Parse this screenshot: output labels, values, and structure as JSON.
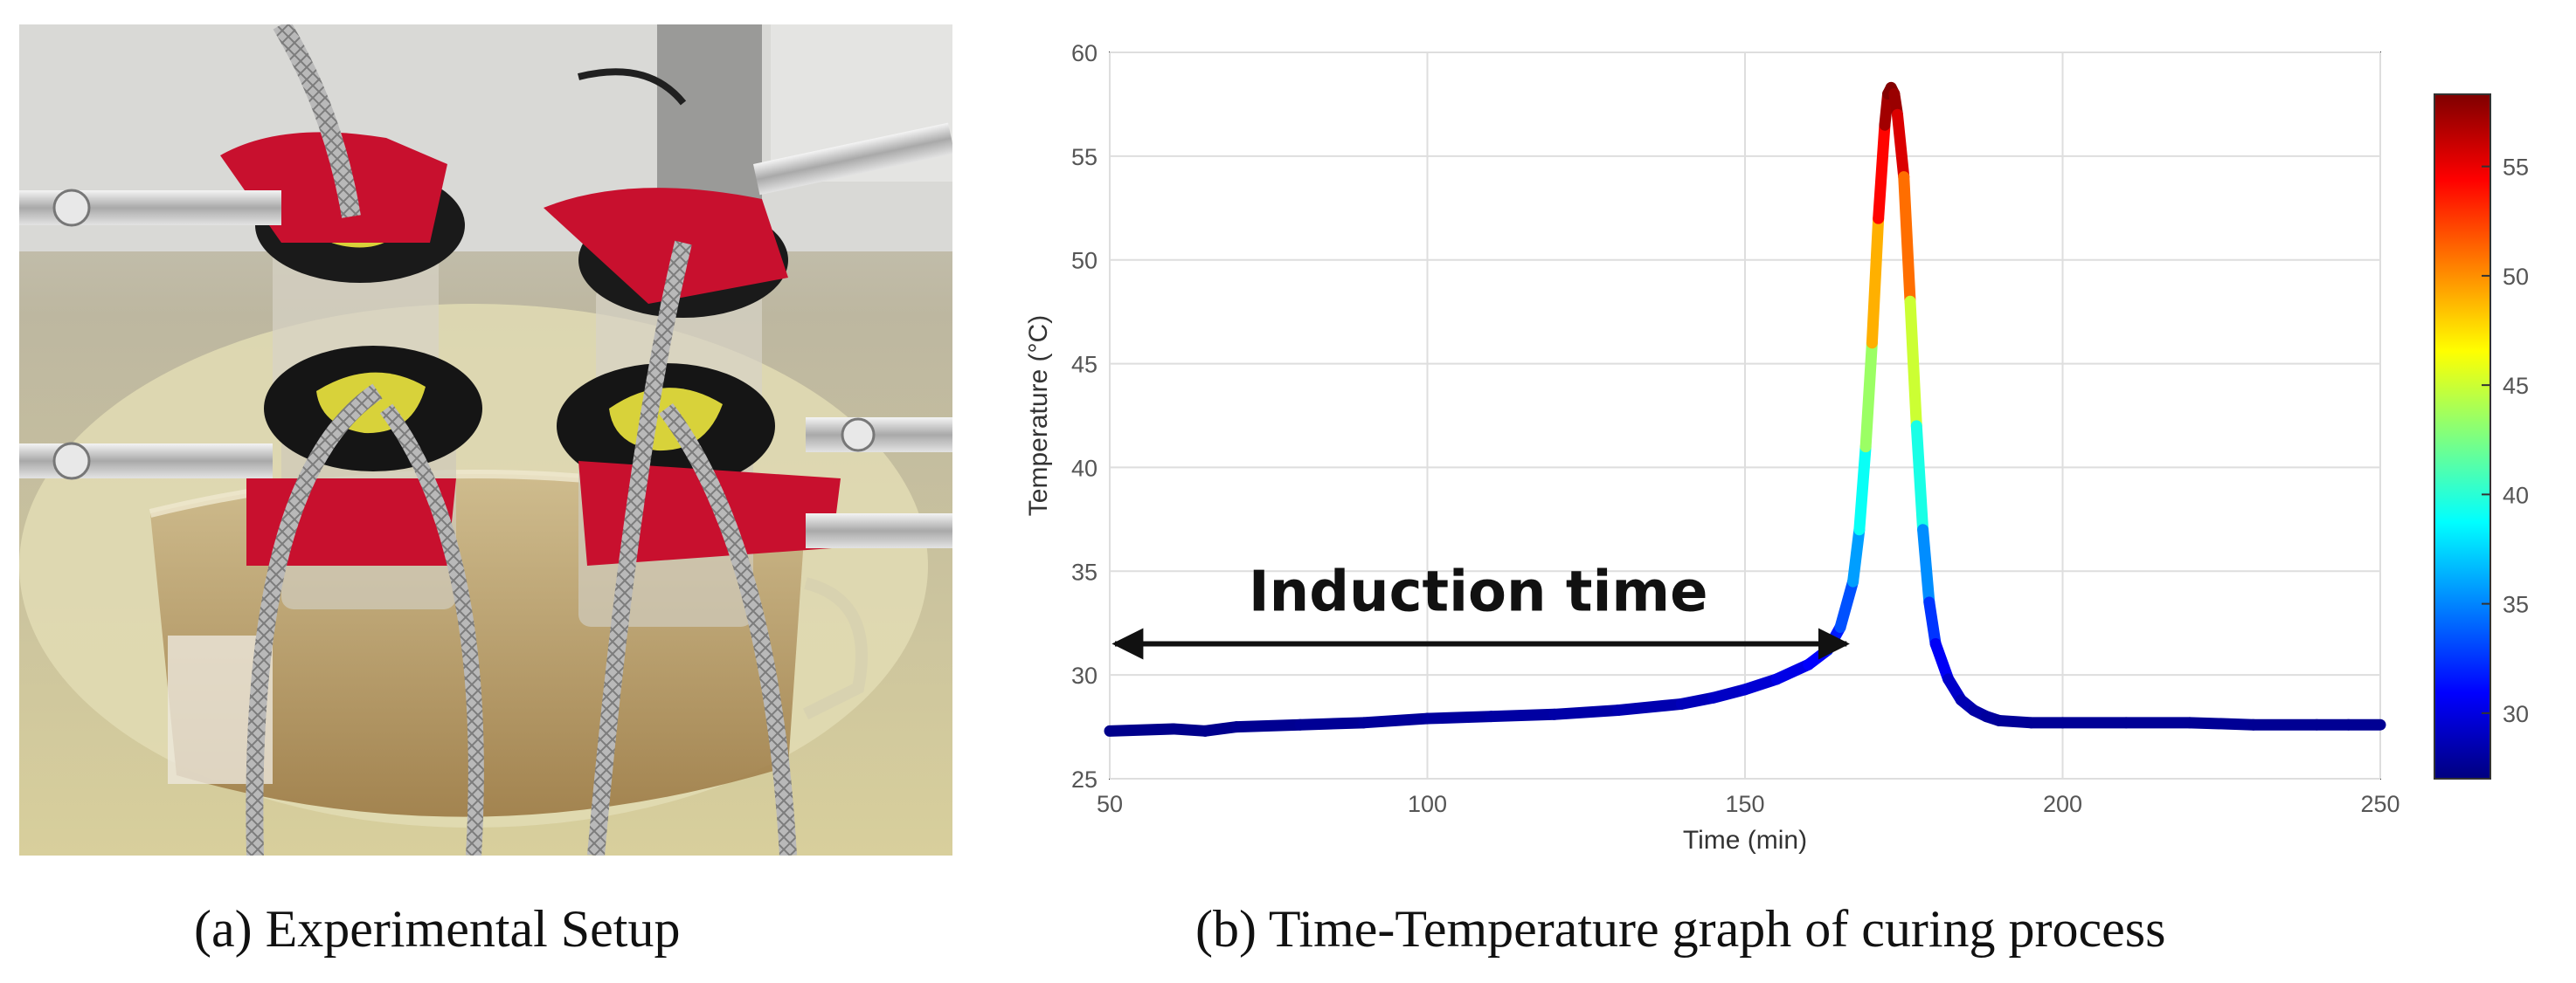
{
  "captions": {
    "a": "(a) Experimental Setup",
    "b": "(b) Time-Temperature graph of curing process"
  },
  "photo": {
    "description_icon": "lab-setup-photo"
  },
  "chart_data": {
    "type": "line",
    "title": "",
    "xlabel": "Time (min)",
    "ylabel": "Temperature (°C)",
    "xlim": [
      50,
      250
    ],
    "ylim": [
      25,
      60
    ],
    "xticks": [
      50,
      100,
      150,
      200,
      250
    ],
    "yticks": [
      25,
      30,
      35,
      40,
      45,
      50,
      55,
      60
    ],
    "grid": true,
    "series": [
      {
        "x": [
          50,
          60,
          65,
          70,
          80,
          90,
          100,
          110,
          120,
          130,
          140,
          145,
          150,
          155,
          160,
          163,
          165,
          167,
          168,
          169,
          170,
          171,
          172,
          172.5,
          173,
          173.5,
          174,
          175,
          176,
          177,
          178,
          179,
          180,
          182,
          184,
          186,
          188,
          190,
          195,
          200,
          210,
          220,
          230,
          240,
          245,
          250
        ],
        "y": [
          27.3,
          27.4,
          27.3,
          27.5,
          27.6,
          27.7,
          27.9,
          28.0,
          28.1,
          28.3,
          28.6,
          28.9,
          29.3,
          29.8,
          30.5,
          31.2,
          32.3,
          34.5,
          37.0,
          41.0,
          46.0,
          52.0,
          56.5,
          58.0,
          58.3,
          58.0,
          57.0,
          54.0,
          48.0,
          42.0,
          37.0,
          33.5,
          31.5,
          29.8,
          28.8,
          28.3,
          28.0,
          27.8,
          27.7,
          27.7,
          27.7,
          27.7,
          27.6,
          27.6,
          27.6,
          27.6
        ]
      }
    ],
    "colormap": "jet",
    "colorbar": {
      "range": [
        27,
        58.3
      ],
      "ticks": [
        30,
        35,
        40,
        45,
        50,
        55
      ]
    },
    "annotation": {
      "text": "Induction time",
      "x_start": 50,
      "x_end": 166,
      "y": 31.5
    }
  }
}
